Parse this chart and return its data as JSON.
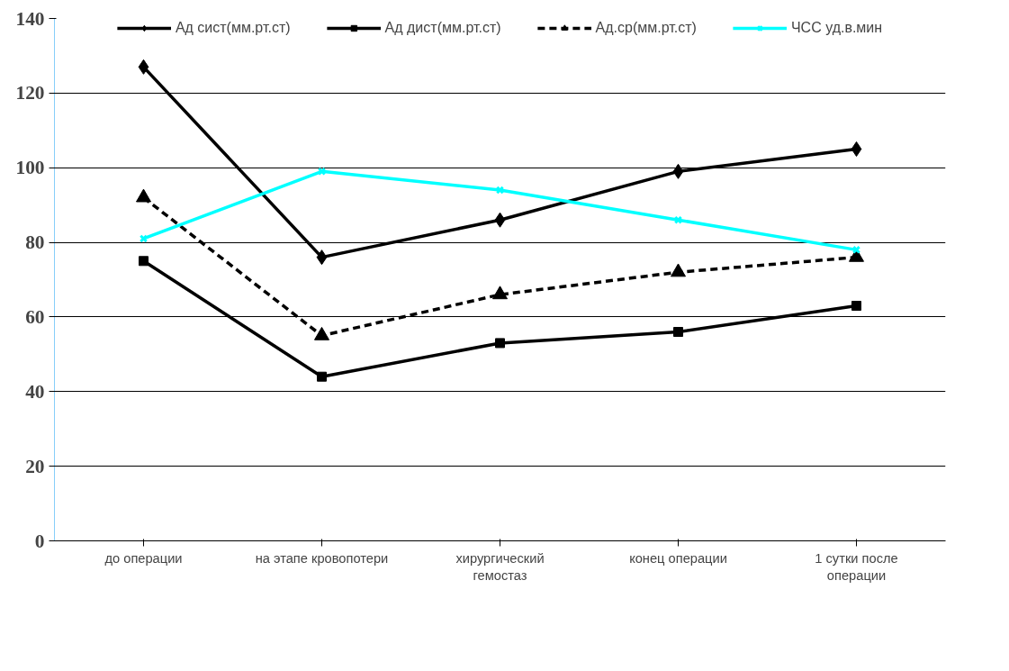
{
  "chart_data": {
    "type": "line",
    "categories": [
      "до операции",
      "на этапе кровопотери",
      "хирургический гемостаз",
      "конец операции",
      "1 сутки после операции"
    ],
    "series": [
      {
        "name": "Ад сист(мм.рт.ст)",
        "color": "#000000",
        "marker": "diamond",
        "line_style": "solid",
        "values": [
          127,
          76,
          86,
          99,
          105
        ]
      },
      {
        "name": "Ад дист(мм.рт.ст)",
        "color": "#000000",
        "marker": "square",
        "line_style": "solid",
        "values": [
          75,
          44,
          53,
          56,
          63
        ]
      },
      {
        "name": "Ад.ср(мм.рт.ст)",
        "color": "#000000",
        "marker": "triangle",
        "line_style": "dashed",
        "values": [
          92,
          55,
          66,
          72,
          76
        ]
      },
      {
        "name": "ЧСС уд.в.мин",
        "color": "#00ffff",
        "marker": "cross",
        "line_style": "solid",
        "values": [
          81,
          99,
          94,
          86,
          78
        ]
      }
    ],
    "ylim": [
      0,
      140
    ],
    "yticks": [
      0,
      20,
      40,
      60,
      80,
      100,
      120,
      140
    ],
    "grid": "y",
    "legend": "top"
  }
}
